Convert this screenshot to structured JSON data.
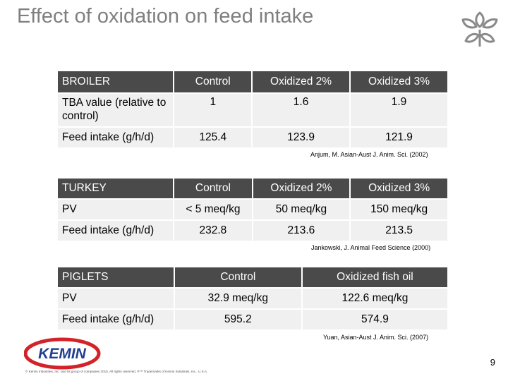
{
  "slide": {
    "title": "Effect of oxidation on feed intake",
    "page_number": "9",
    "footer": "© Kemin Industries, Inc. and its group of companies 2015. All rights reserved. ®™ Trademarks of Kemin Industries, Inc., U.S.A.",
    "logo_text": "KEMIN"
  },
  "broiler": {
    "headers": [
      "BROILER",
      "Control",
      "Oxidized 2%",
      "Oxidized 3%"
    ],
    "rows": [
      [
        "TBA value (relative to control)",
        "1",
        "1.6",
        "1.9"
      ],
      [
        "Feed intake (g/h/d)",
        "125.4",
        "123.9",
        "121.9"
      ]
    ],
    "citation": "Anjum, M. Asian-Aust J. Anim. Sci. (2002)"
  },
  "turkey": {
    "headers": [
      "TURKEY",
      "Control",
      "Oxidized 2%",
      "Oxidized 3%"
    ],
    "rows": [
      [
        "PV",
        "< 5 meq/kg",
        "50 meq/kg",
        "150 meq/kg"
      ],
      [
        "Feed intake (g/h/d)",
        "232.8",
        "213.6",
        "213.5"
      ]
    ],
    "citation": "Jankowski, J. Animal Feed Science (2000)"
  },
  "piglets": {
    "headers": [
      "PIGLETS",
      "Control",
      "Oxidized fish oil"
    ],
    "rows": [
      [
        "PV",
        "32.9 meq/kg",
        "122.6 meq/kg"
      ],
      [
        "Feed intake (g/h/d)",
        "595.2",
        "574.9"
      ]
    ],
    "citation": "Yuan, Asian-Aust J. Anim. Sci. (2007)"
  },
  "colors": {
    "header_bg": "#4a4a4a",
    "row_bg": "#f0f0f0",
    "title": "#7f7f7f",
    "brand_red": "#d2232a",
    "brand_blue": "#1f3f8f"
  },
  "icons": [
    "leaf-logo-icon",
    "kemin-logo"
  ]
}
